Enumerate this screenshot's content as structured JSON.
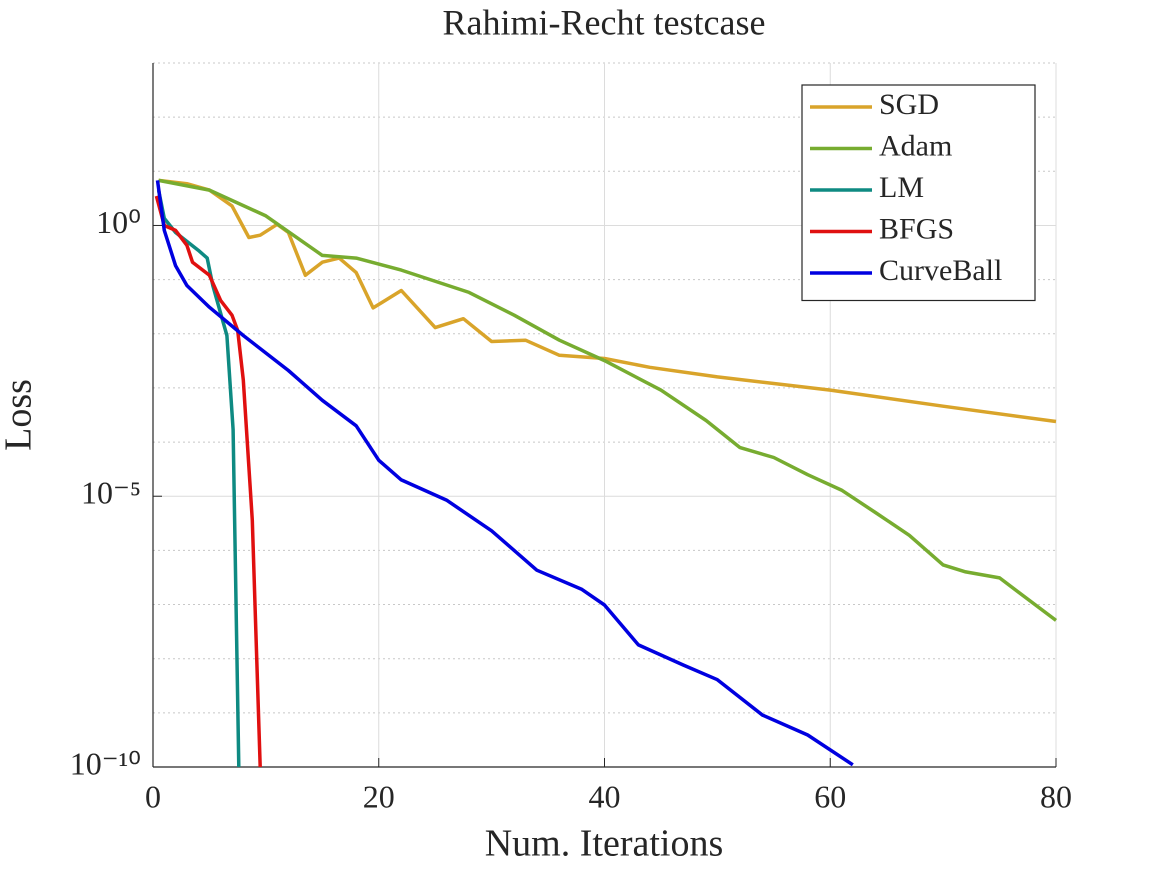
{
  "chart_data": {
    "type": "line",
    "title": "Rahimi-Recht testcase",
    "x_label": "Num. Iterations",
    "y_label": "Loss",
    "xlim": [
      0,
      80
    ],
    "xticks": [
      0,
      20,
      40,
      60,
      80
    ],
    "ylim": [
      1e-10,
      1000
    ],
    "y_log": true,
    "yticks": [
      {
        "value": 1e-10,
        "label": "10⁻¹⁰"
      },
      {
        "value": 1e-05,
        "label": "10⁻⁵"
      },
      {
        "value": 1,
        "label": "10⁰"
      }
    ],
    "yminor_grid": [
      1e-09,
      1e-08,
      1e-07,
      1e-06,
      0.0001,
      0.001,
      0.01,
      0.1,
      10,
      100,
      1000
    ],
    "grid": true,
    "legend": "top-right",
    "series": [
      {
        "name": "SGD",
        "color": "#d9a42a",
        "x": [
          0.5,
          3,
          5,
          7,
          8.5,
          9.5,
          11,
          12,
          13.5,
          15,
          16.5,
          18,
          19.5,
          22,
          25,
          27.5,
          30,
          33,
          36,
          40,
          44,
          50,
          60,
          70,
          80
        ],
        "values": [
          6.8,
          5.9,
          4.5,
          2.3,
          0.6,
          0.66,
          1.05,
          0.74,
          0.12,
          0.21,
          0.25,
          0.135,
          0.03,
          0.063,
          0.013,
          0.019,
          0.0072,
          0.0076,
          0.004,
          0.0035,
          0.0024,
          0.0016,
          0.00091,
          0.00046,
          0.00024
        ]
      },
      {
        "name": "Adam",
        "color": "#77ac30",
        "x": [
          0.5,
          5,
          10,
          15,
          18,
          22,
          28,
          32,
          36,
          40,
          45,
          49,
          52,
          55,
          58,
          61,
          64,
          67,
          70,
          72,
          75,
          80
        ],
        "values": [
          6.8,
          4.5,
          1.5,
          0.28,
          0.25,
          0.15,
          0.058,
          0.022,
          0.0076,
          0.0032,
          0.00091,
          0.00025,
          7.9e-05,
          5.2e-05,
          2.5e-05,
          1.3e-05,
          5e-06,
          1.9e-06,
          5.4e-07,
          4e-07,
          3.1e-07,
          5.1e-08
        ]
      },
      {
        "name": "LM",
        "color": "#0e8a82",
        "x": [
          0.5,
          1,
          2,
          4,
          4.8,
          5.3,
          6.55,
          7.1,
          7.6
        ],
        "values": [
          4.5,
          1.35,
          0.74,
          0.35,
          0.25,
          0.078,
          0.0093,
          0.00017,
          1e-10
        ]
      },
      {
        "name": "BFGS",
        "color": "#e01010",
        "x": [
          0.3,
          1,
          2,
          3,
          3.5,
          5,
          6,
          7,
          7.5,
          8,
          8.8,
          9.5
        ],
        "values": [
          3.5,
          1,
          0.81,
          0.43,
          0.21,
          0.12,
          0.041,
          0.022,
          0.0115,
          0.0014,
          3.6e-06,
          1e-10
        ]
      },
      {
        "name": "CurveBall",
        "color": "#0000e0",
        "x": [
          0.4,
          1,
          2,
          3,
          5,
          8,
          12,
          15,
          18,
          20,
          22,
          26,
          30,
          34,
          38,
          40,
          43,
          47,
          50,
          54,
          58,
          62
        ],
        "values": [
          6.8,
          0.81,
          0.18,
          0.078,
          0.031,
          0.0093,
          0.0021,
          0.00059,
          0.0002,
          4.6e-05,
          2e-05,
          8.5e-06,
          2.3e-06,
          4.3e-07,
          1.9e-07,
          9.8e-08,
          1.8e-08,
          7.6e-09,
          4.1e-09,
          9.1e-10,
          3.9e-10,
          1.1e-10
        ]
      }
    ]
  }
}
